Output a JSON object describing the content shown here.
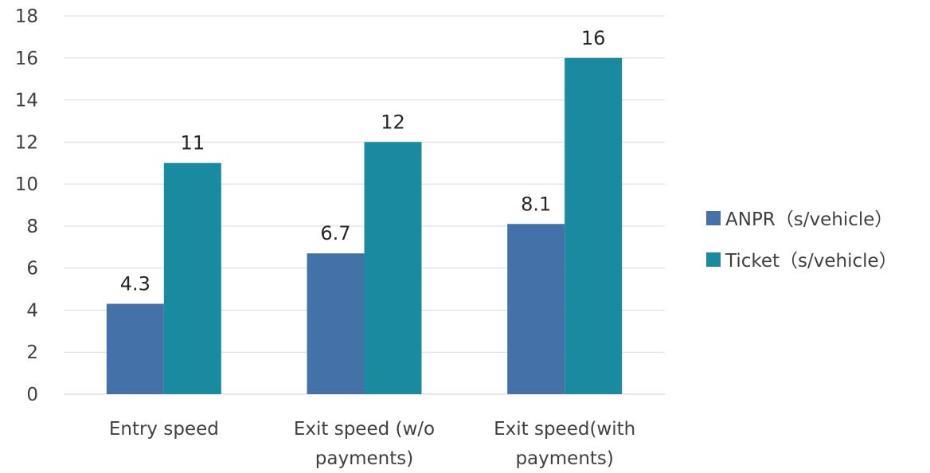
{
  "chart_data": {
    "type": "bar",
    "categories": [
      [
        "Entry speed"
      ],
      [
        "Exit speed (w/o",
        "payments)"
      ],
      [
        "Exit speed(with",
        "payments)"
      ]
    ],
    "series": [
      {
        "name": "ANPR（s/vehicle）",
        "values": [
          4.3,
          6.7,
          8.1
        ],
        "labels": [
          "4.3",
          "6.7",
          "8.1"
        ],
        "color": "#4472a8"
      },
      {
        "name": "Ticket（s/vehicle）",
        "values": [
          11,
          12,
          16
        ],
        "labels": [
          "11",
          "12",
          "16"
        ],
        "color": "#1a8aa0"
      }
    ],
    "ylim": [
      0,
      18
    ],
    "yticks": [
      0,
      2,
      4,
      6,
      8,
      10,
      12,
      14,
      16,
      18
    ],
    "title": "",
    "xlabel": "",
    "ylabel": "",
    "grid": true,
    "legend_position": "right"
  }
}
